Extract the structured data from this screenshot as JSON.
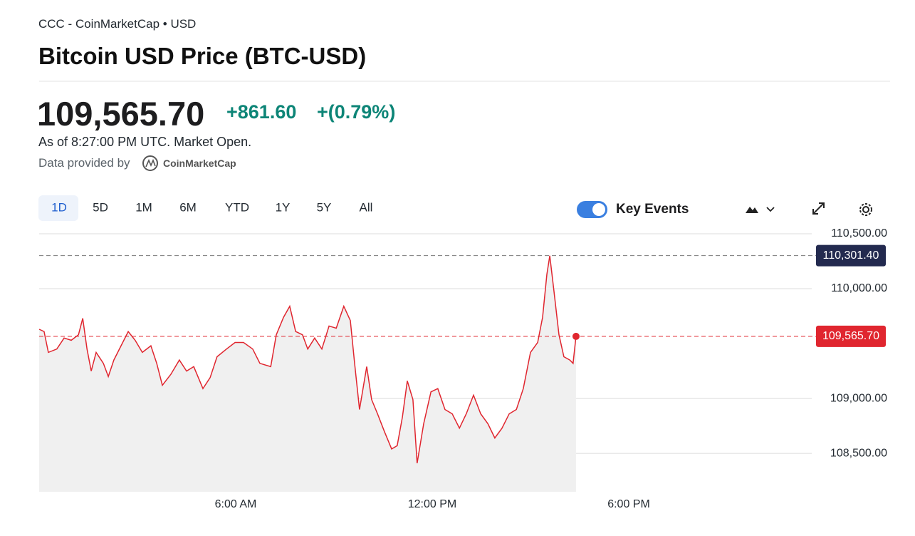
{
  "header": {
    "source": "CCC - CoinMarketCap • USD",
    "title": "Bitcoin USD Price (BTC-USD)"
  },
  "quote": {
    "price": "109,565.70",
    "change": "+861.60",
    "change_percent": "+(0.79%)",
    "as_of": "As of 8:27:00 PM UTC. Market Open.",
    "provided_by": "Data provided by",
    "provider": "CoinMarketCap"
  },
  "toolbar": {
    "ranges": [
      "1D",
      "5D",
      "1M",
      "6M",
      "YTD",
      "1Y",
      "5Y",
      "All"
    ],
    "key_events": "Key Events"
  },
  "chart_data": {
    "type": "line",
    "x": [
      0,
      0.15,
      0.28,
      0.54,
      0.76,
      0.98,
      1.2,
      1.33,
      1.46,
      1.59,
      1.74,
      1.96,
      2.11,
      2.28,
      2.5,
      2.72,
      2.93,
      3.15,
      3.41,
      3.59,
      3.76,
      4.02,
      4.28,
      4.5,
      4.72,
      5.0,
      5.22,
      5.43,
      5.72,
      5.98,
      6.24,
      6.52,
      6.74,
      7.07,
      7.24,
      7.46,
      7.65,
      7.83,
      8.04,
      8.2,
      8.41,
      8.63,
      8.85,
      9.07,
      9.3,
      9.5,
      9.63,
      9.78,
      10.0,
      10.15,
      10.33,
      10.54,
      10.76,
      10.93,
      11.09,
      11.24,
      11.41,
      11.54,
      11.74,
      11.96,
      12.17,
      12.39,
      12.61,
      12.83,
      13.04,
      13.26,
      13.48,
      13.7,
      13.91,
      14.13,
      14.35,
      14.57,
      14.78,
      15.0,
      15.22,
      15.37,
      15.5,
      15.59,
      15.72,
      15.87,
      16.02,
      16.2,
      16.3,
      16.39
    ],
    "series": [
      {
        "color": "#e0262f",
        "values": [
          109630,
          109610,
          109420,
          109450,
          109550,
          109530,
          109580,
          109730,
          109450,
          109250,
          109420,
          109320,
          109200,
          109350,
          109480,
          109610,
          109530,
          109420,
          109480,
          109320,
          109120,
          109220,
          109350,
          109250,
          109290,
          109090,
          109190,
          109380,
          109450,
          109510,
          109510,
          109450,
          109320,
          109290,
          109580,
          109740,
          109840,
          109610,
          109580,
          109450,
          109550,
          109450,
          109660,
          109640,
          109840,
          109710,
          109320,
          108900,
          109290,
          108990,
          108860,
          108700,
          108540,
          108570,
          108830,
          109160,
          108990,
          108410,
          108770,
          109060,
          109090,
          108900,
          108860,
          108730,
          108860,
          109030,
          108860,
          108770,
          108640,
          108730,
          108860,
          108900,
          109090,
          109420,
          109510,
          109740,
          110130,
          110300,
          109970,
          109580,
          109380,
          109350,
          109320,
          109565.7
        ]
      }
    ],
    "xlim": [
      0,
      24
    ],
    "xticks": [
      {
        "value": 6,
        "label": "6:00 AM"
      },
      {
        "value": 12,
        "label": "12:00 PM"
      },
      {
        "value": 18,
        "label": "6:00 PM"
      }
    ],
    "ylim": [
      108150,
      110500
    ],
    "yticks": [
      {
        "value": 108500,
        "label": "108,500.00"
      },
      {
        "value": 109000,
        "label": "109,000.00"
      },
      {
        "value": 110000,
        "label": "110,000.00"
      },
      {
        "value": 110500,
        "label": "110,500.00"
      }
    ],
    "grid": true,
    "reference_lines": [
      {
        "value": 110301.4,
        "label": "110,301.40",
        "color": "#232a4f",
        "line_color": "#777777"
      },
      {
        "value": 109565.7,
        "label": "109,565.70",
        "color": "#e0262f",
        "line_color": "#e0262f"
      }
    ]
  }
}
